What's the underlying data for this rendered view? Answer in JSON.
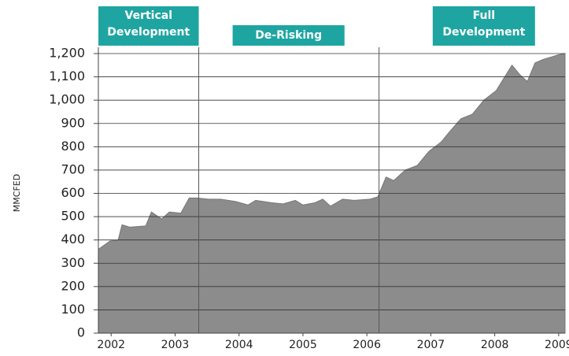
{
  "chart_data": {
    "type": "area",
    "y_label": "MMCFED",
    "annotations": [
      {
        "lines": [
          "Vertical",
          "Development"
        ],
        "x": [
          2001.8,
          2003.37
        ]
      },
      {
        "lines": [
          "De-Risking"
        ],
        "x": [
          2003.9,
          2005.65
        ]
      },
      {
        "lines": [
          "Full",
          "Development"
        ],
        "x": [
          2007.03,
          2008.63
        ]
      }
    ],
    "phase_boundaries": [
      2003.37,
      2006.19
    ],
    "color": "#8c8c8c",
    "box_color": "#1ea5a2",
    "x": [
      2001.8,
      2001.98,
      2002.11,
      2002.17,
      2002.29,
      2002.54,
      2002.63,
      2002.79,
      2002.91,
      2003.09,
      2003.22,
      2003.34,
      2003.52,
      2003.71,
      2003.95,
      2004.14,
      2004.26,
      2004.51,
      2004.69,
      2004.88,
      2005.0,
      2005.19,
      2005.31,
      2005.43,
      2005.62,
      2005.8,
      2006.05,
      2006.17,
      2006.3,
      2006.42,
      2006.6,
      2006.79,
      2006.97,
      2007.16,
      2007.28,
      2007.47,
      2007.65,
      2007.83,
      2008.02,
      2008.27,
      2008.39,
      2008.51,
      2008.63,
      2008.76,
      2008.88,
      2009.0,
      2009.1
    ],
    "values": [
      360,
      395,
      400,
      465,
      455,
      460,
      520,
      490,
      520,
      515,
      580,
      580,
      575,
      575,
      565,
      550,
      570,
      560,
      555,
      570,
      550,
      560,
      575,
      545,
      575,
      570,
      575,
      585,
      670,
      655,
      700,
      720,
      780,
      820,
      860,
      920,
      940,
      1000,
      1040,
      1150,
      1110,
      1080,
      1160,
      1175,
      1185,
      1195,
      1200
    ],
    "xlim": [
      2001.8,
      2009.1
    ],
    "xticks": [
      2002,
      2003,
      2004,
      2005,
      2006,
      2007,
      2008,
      2009
    ],
    "ylim": [
      0,
      1200
    ],
    "yticks": [
      0,
      100,
      200,
      300,
      400,
      500,
      600,
      700,
      800,
      900,
      {
        "value": 1000,
        "label": "1,000"
      },
      {
        "value": 1100,
        "label": "1,100"
      },
      {
        "value": 1200,
        "label": "1,200"
      }
    ],
    "grid": true
  }
}
